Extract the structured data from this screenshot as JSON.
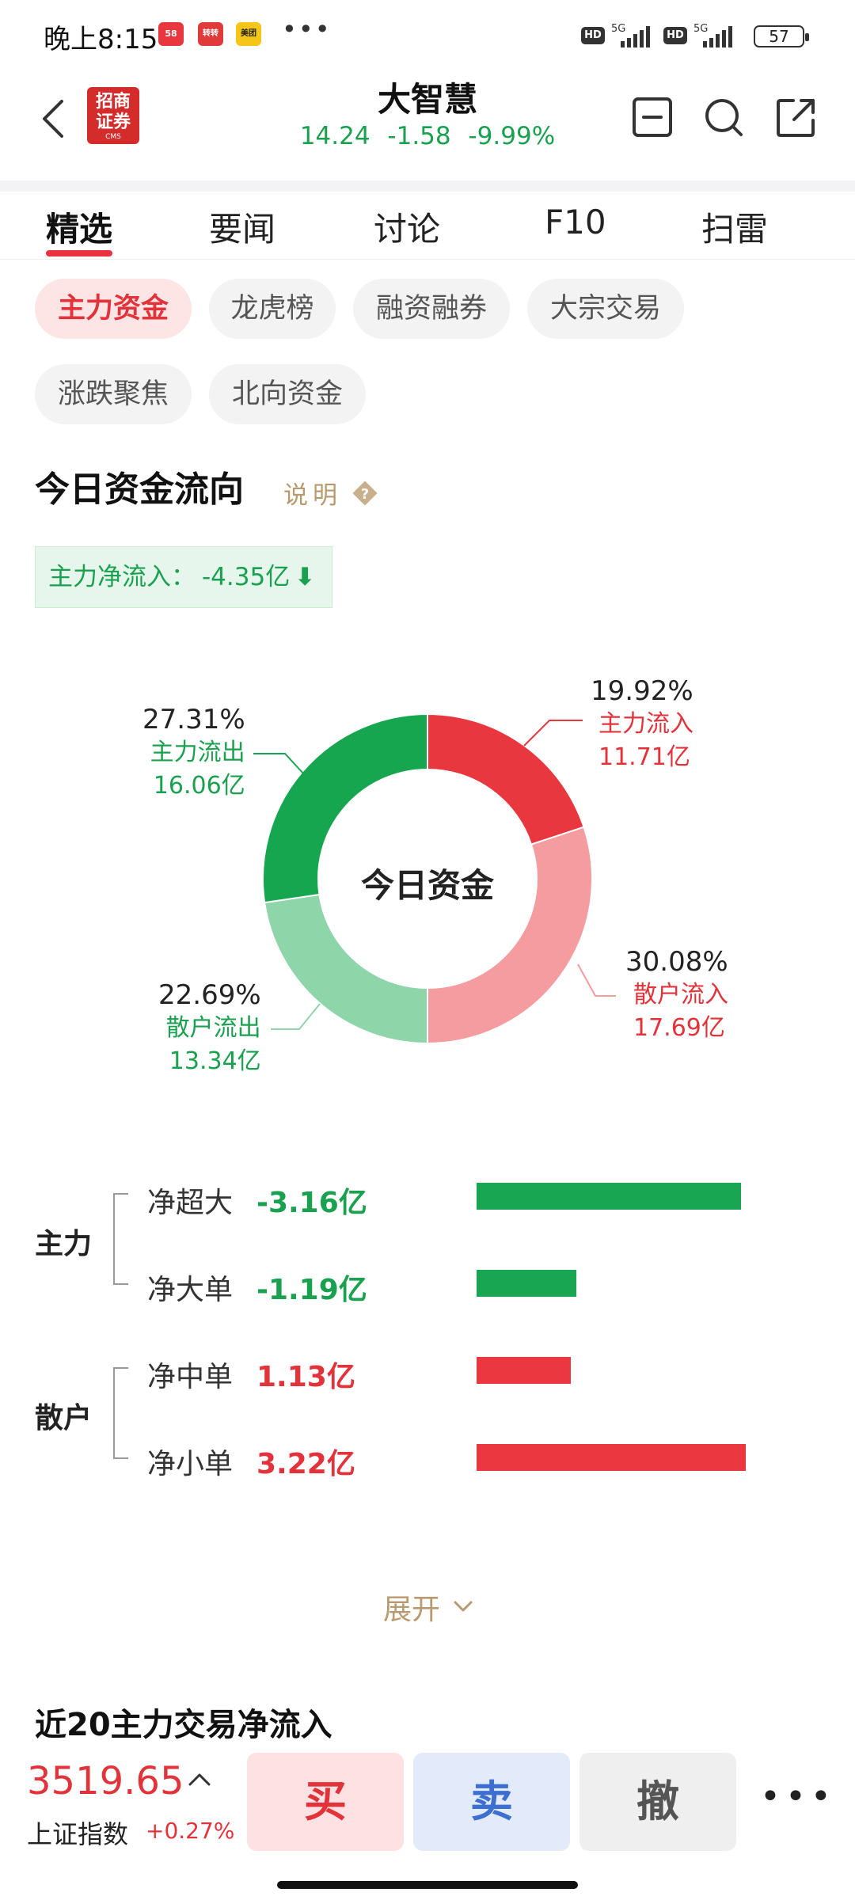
{
  "status_bar": {
    "time": "晚上8:15",
    "mini_icons": [
      "58",
      "转转",
      "美团"
    ],
    "more": "•••",
    "hd": "HD",
    "net": "5G",
    "battery": "57"
  },
  "header": {
    "broker_logo": "招商证券",
    "broker_logo_sub": "CMS",
    "stock_name": "大智慧",
    "price": "14.24",
    "change": "-1.58",
    "change_pct": "-9.99%"
  },
  "tabs": [
    "精选",
    "要闻",
    "讨论",
    "F10",
    "扫雷"
  ],
  "chips": [
    "主力资金",
    "龙虎榜",
    "融资融券",
    "大宗交易",
    "涨跌聚焦",
    "北向资金"
  ],
  "flow": {
    "title": "今日资金流向",
    "explain": "说明",
    "net_label": "主力净流入：",
    "net_value": "-4.35亿",
    "net_arrow": "⬇"
  },
  "chart_data": {
    "type": "pie",
    "center_label": "今日资金",
    "slices": [
      {
        "name": "主力流入",
        "percent": 19.92,
        "amount": "11.71亿",
        "pct_label": "19.92%",
        "color": "#e8373f"
      },
      {
        "name": "散户流入",
        "percent": 30.08,
        "amount": "17.69亿",
        "pct_label": "30.08%",
        "color": "#f59ca1"
      },
      {
        "name": "散户流出",
        "percent": 22.69,
        "amount": "13.34亿",
        "pct_label": "22.69%",
        "color": "#8fd5aa"
      },
      {
        "name": "主力流出",
        "percent": 27.31,
        "amount": "16.06亿",
        "pct_label": "27.31%",
        "color": "#17a650"
      }
    ]
  },
  "breakdown": {
    "groups": [
      "主力",
      "散户"
    ],
    "rows": [
      {
        "name": "净超大",
        "value": "-3.16亿",
        "amount": -3.16
      },
      {
        "name": "净大单",
        "value": "-1.19亿",
        "amount": -1.19
      },
      {
        "name": "净中单",
        "value": "1.13亿",
        "amount": 1.13
      },
      {
        "name": "净小单",
        "value": "3.22亿",
        "amount": 3.22
      }
    ]
  },
  "expand": "展开",
  "next_section_title": "近20主力交易净流入",
  "bottom": {
    "index_value": "3519.65",
    "index_name": "上证指数",
    "index_change": "+0.27%",
    "buy": "买",
    "sell": "卖",
    "cancel": "撤",
    "more": "•••"
  }
}
